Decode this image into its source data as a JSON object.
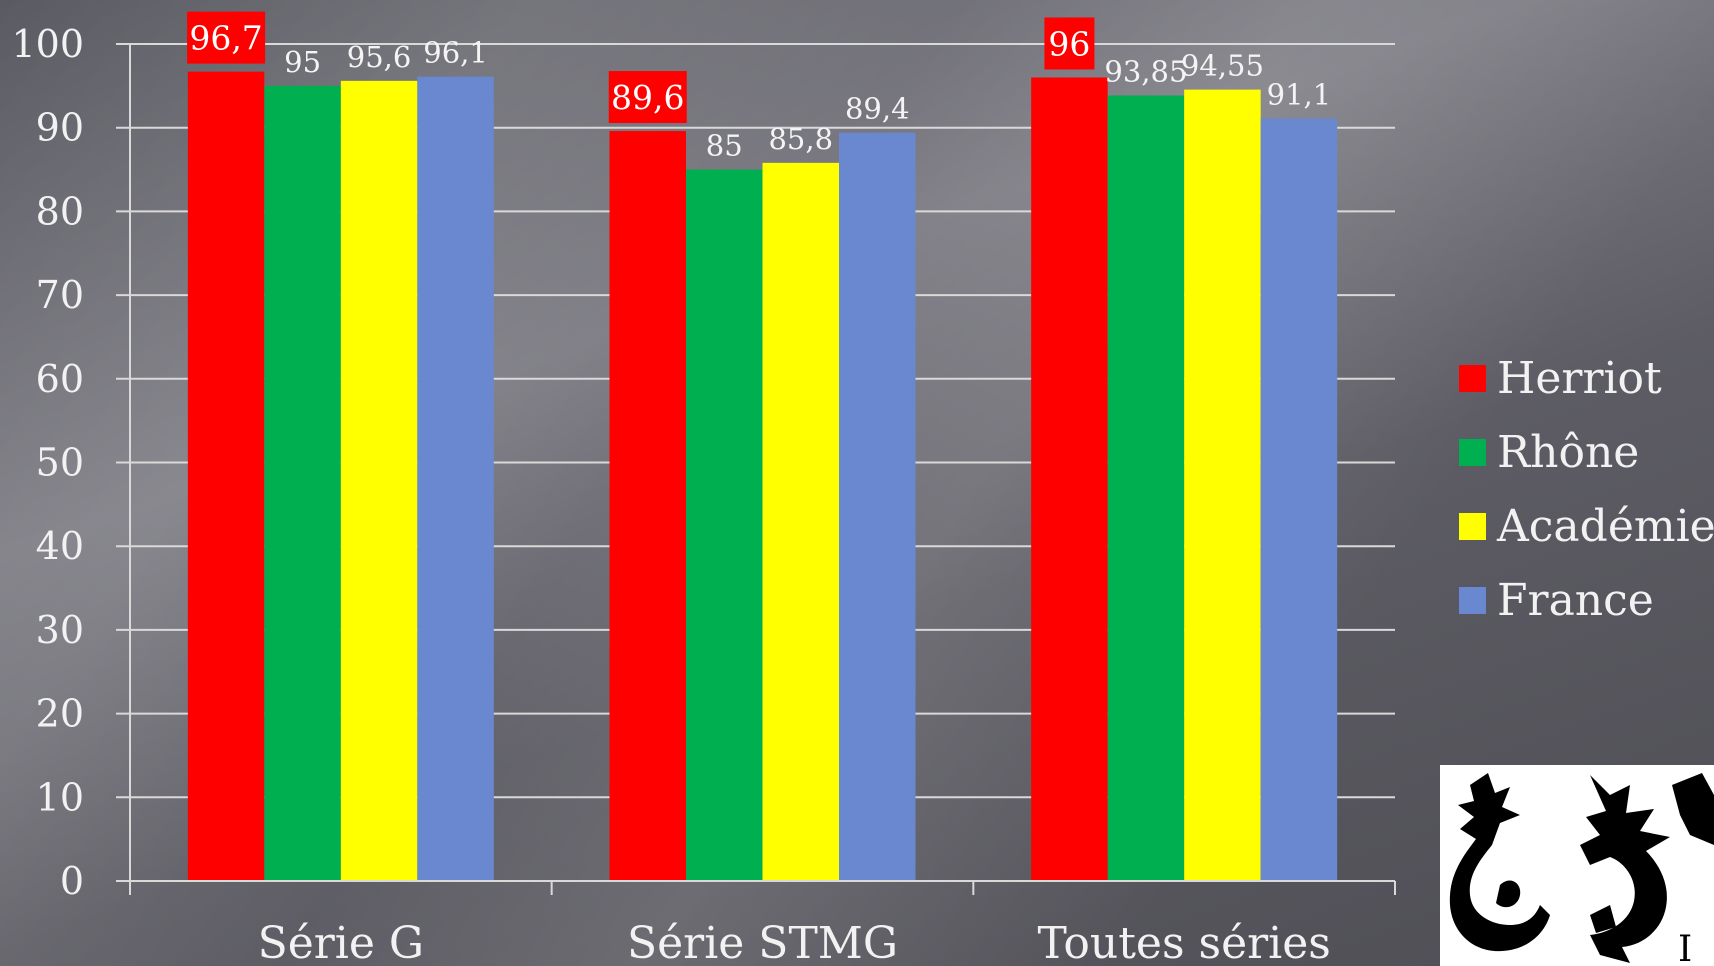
{
  "chart_data": {
    "type": "bar",
    "categories": [
      "Série G",
      "Série STMG",
      "Toutes séries"
    ],
    "series": [
      {
        "name": "Herriot",
        "color": "#ff0000",
        "values": [
          96.7,
          89.6,
          96
        ],
        "labels": [
          "96,7",
          "89,6",
          "96"
        ],
        "highlight": true
      },
      {
        "name": "Rhône",
        "color": "#00b050",
        "values": [
          95,
          85,
          93.85
        ],
        "labels": [
          "95",
          "85",
          "93,85"
        ],
        "highlight": false
      },
      {
        "name": "Académie",
        "color": "#ffff00",
        "values": [
          95.6,
          85.8,
          94.55
        ],
        "labels": [
          "95,6",
          "85,8",
          "94,55"
        ],
        "highlight": false
      },
      {
        "name": "France",
        "color": "#6a88cf",
        "values": [
          96.1,
          89.4,
          91.1
        ],
        "labels": [
          "96,1",
          "89,4",
          "91,1"
        ],
        "highlight": false
      }
    ],
    "ylim": [
      0,
      100
    ],
    "yticks": [
      0,
      10,
      20,
      30,
      40,
      50,
      60,
      70,
      80,
      90,
      100
    ],
    "grid": true,
    "legend_position": "right",
    "title": "",
    "xlabel": "",
    "ylabel": ""
  },
  "logo": {
    "icon": "dragon-emblem-icon",
    "partial_text": "I"
  }
}
